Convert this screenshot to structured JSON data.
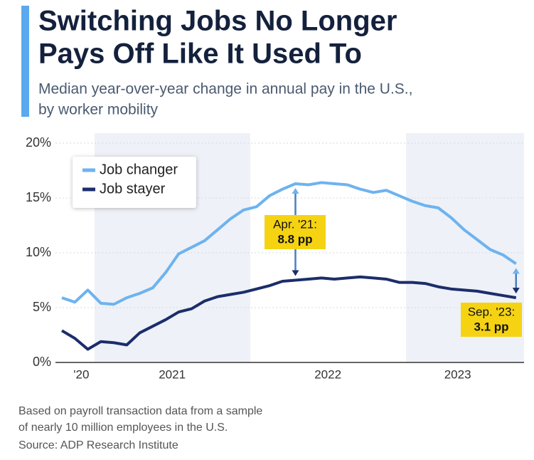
{
  "chart_data": {
    "type": "line",
    "title": [
      "Switching Jobs No Longer",
      "Pays Off Like It Used To"
    ],
    "subtitle": [
      "Median year-over-year change in annual pay in the U.S.,",
      "by worker mobility"
    ],
    "note": [
      "Based on payroll transaction data from a sample",
      "of nearly 10 million employees in the U.S."
    ],
    "source": "Source: ADP Research Institute",
    "categories": [
      null,
      "'20",
      null,
      null,
      null,
      null,
      null,
      null,
      "2021",
      null,
      null,
      null,
      null,
      null,
      null,
      null,
      null,
      null,
      null,
      null,
      "2022",
      null,
      null,
      null,
      null,
      null,
      null,
      null,
      null,
      null,
      "2023",
      null,
      null,
      null,
      null,
      null
    ],
    "series": [
      {
        "name": "Job changer",
        "color": "#6db3ef",
        "values": [
          5.9,
          5.5,
          6.6,
          5.4,
          5.3,
          5.9,
          6.3,
          6.8,
          8.2,
          9.9,
          10.5,
          11.1,
          12.1,
          13.1,
          13.9,
          14.2,
          15.2,
          15.8,
          16.3,
          16.2,
          16.4,
          16.3,
          16.2,
          15.8,
          15.5,
          15.7,
          15.2,
          14.7,
          14.3,
          14.1,
          13.2,
          12.1,
          11.2,
          10.3,
          9.8,
          9.0
        ]
      },
      {
        "name": "Job stayer",
        "color": "#1b2d6b",
        "values": [
          2.9,
          2.2,
          1.2,
          1.9,
          1.8,
          1.6,
          2.7,
          3.3,
          3.9,
          4.6,
          4.9,
          5.6,
          6.0,
          6.2,
          6.4,
          6.7,
          7.0,
          7.4,
          7.5,
          7.6,
          7.7,
          7.6,
          7.7,
          7.8,
          7.7,
          7.6,
          7.3,
          7.3,
          7.2,
          6.9,
          6.7,
          6.6,
          6.5,
          6.3,
          6.1,
          5.9
        ]
      }
    ],
    "ylim": [
      0,
      20
    ],
    "yticks": [
      {
        "value": 0,
        "label": "0%"
      },
      {
        "value": 5,
        "label": "5%"
      },
      {
        "value": 10,
        "label": "10%"
      },
      {
        "value": 15,
        "label": "15%"
      },
      {
        "value": 20,
        "label": "20%"
      }
    ],
    "grid": true,
    "legend": "upper left",
    "annotations": [
      {
        "text": "Apr. '21:",
        "value": "8.8 pp"
      },
      {
        "text": "Sep. '23:",
        "value": "3.1 pp"
      }
    ]
  }
}
